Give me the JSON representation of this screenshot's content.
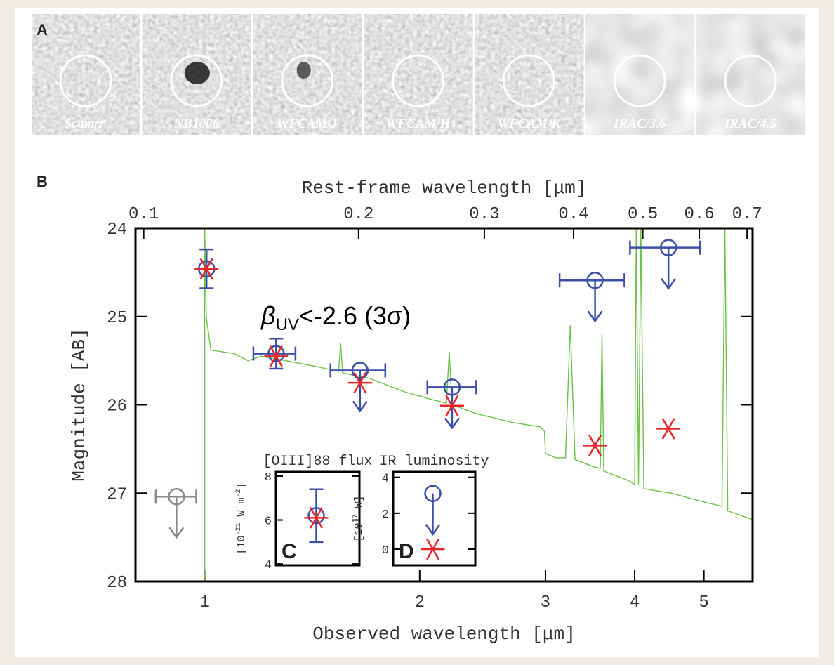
{
  "panel_labels": {
    "a": "A",
    "b": "B"
  },
  "images": [
    "Scam/z'",
    "NB1006",
    "WFCAM/J",
    "WFCAM/H",
    "WFCAM/K",
    "IRAC/3.6",
    "IRAC/4.5"
  ],
  "chart_data": [
    {
      "type": "scatter",
      "xlabel": "Observed wavelength [μm]",
      "x2label": "Rest-frame wavelength [μm]",
      "ylabel": "Magnitude [AB]",
      "xscale": "log",
      "xlim": [
        0.8,
        5.85
      ],
      "xticks": [
        1,
        2,
        3,
        4,
        5
      ],
      "x2lim": [
        0.0974,
        0.7125
      ],
      "x2ticks": [
        0.1,
        0.2,
        0.3,
        0.4,
        0.5,
        0.6,
        0.7
      ],
      "ylim": [
        28,
        24
      ],
      "yticks": [
        24,
        25,
        26,
        27,
        28
      ],
      "annotation": [
        "β",
        "UV",
        "<-2.6 (3σ)"
      ],
      "series": [
        {
          "marker": "line",
          "color": "#6cc24a",
          "x": [
            1.0,
            1.0,
            1.005,
            1.02,
            1.1,
            1.15,
            1.2,
            1.3,
            1.4,
            1.5,
            1.54,
            1.55,
            1.56,
            1.7,
            1.9,
            2.1,
            2.18,
            2.2,
            2.22,
            2.4,
            2.7,
            2.95,
            2.99,
            3.0,
            3.1,
            3.2,
            3.25,
            3.3,
            3.5,
            3.58,
            3.6,
            3.62,
            3.9,
            4.0,
            4.02,
            4.05,
            4.08,
            4.12,
            4.5,
            5.0,
            5.3,
            5.35,
            5.4,
            5.85
          ],
          "values": [
            28,
            24.0,
            25.0,
            25.38,
            25.42,
            25.5,
            25.45,
            25.5,
            25.55,
            25.6,
            25.62,
            25.3,
            25.64,
            25.7,
            25.85,
            25.95,
            25.98,
            25.4,
            26.0,
            26.1,
            26.2,
            26.25,
            26.3,
            26.55,
            26.6,
            26.6,
            25.1,
            26.62,
            26.7,
            26.72,
            25.2,
            26.75,
            26.85,
            26.9,
            24.0,
            26.9,
            24.0,
            26.95,
            27.0,
            27.1,
            27.15,
            24.0,
            27.2,
            27.3
          ]
        },
        {
          "marker": "circle",
          "color": "#8a8a8a",
          "x": [
            0.913
          ],
          "x_lo": [
            0.854
          ],
          "x_hi": [
            0.973
          ],
          "values": [
            27.04
          ],
          "yerr": [
            null
          ],
          "upper_limit": [
            true
          ]
        },
        {
          "marker": "circle",
          "color": "#3b4fa6",
          "x": [
            1.006,
            1.259,
            1.65,
            2.22,
            3.52,
            4.46
          ],
          "x_lo": [
            null,
            1.17,
            1.5,
            2.05,
            3.14,
            3.94
          ],
          "x_hi": [
            null,
            1.34,
            1.79,
            2.4,
            3.87,
            4.94
          ],
          "values": [
            24.46,
            25.42,
            25.61,
            25.8,
            24.59,
            24.22
          ],
          "yerr": [
            0.22,
            0.17,
            null,
            null,
            null,
            null
          ],
          "upper_limit": [
            false,
            false,
            true,
            true,
            true,
            true
          ]
        },
        {
          "marker": "asterisk",
          "color": "#e8262a",
          "x": [
            1.006,
            1.259,
            1.65,
            2.22,
            3.52,
            4.46
          ],
          "values": [
            24.46,
            25.45,
            25.75,
            26.01,
            26.46,
            26.27
          ]
        }
      ]
    },
    {
      "type": "scatter",
      "title": "[OIII]88 flux",
      "ylabel": [
        "[10",
        "-21",
        " W m",
        "-2",
        "]"
      ],
      "label": "C",
      "ylim": [
        3.94,
        8.19
      ],
      "yticks": [
        4,
        6,
        8
      ],
      "series": [
        {
          "marker": "circle",
          "color": "#3b4fa6",
          "values": [
            6.2
          ],
          "yerr": [
            1.2
          ],
          "upper_limit": [
            false
          ]
        },
        {
          "marker": "asterisk",
          "color": "#e8262a",
          "values": [
            6.1
          ]
        }
      ]
    },
    {
      "type": "scatter",
      "title": "IR luminosity",
      "ylabel": [
        "[10",
        "37",
        " W]"
      ],
      "label": "D",
      "ylim": [
        -0.9,
        4.3
      ],
      "yticks": [
        0,
        2,
        4
      ],
      "series": [
        {
          "marker": "circle",
          "color": "#3b4fa6",
          "values": [
            3.1
          ],
          "yerr": [
            null
          ],
          "upper_limit": [
            true
          ]
        },
        {
          "marker": "asterisk",
          "color": "#e8262a",
          "values": [
            0
          ]
        }
      ]
    }
  ]
}
